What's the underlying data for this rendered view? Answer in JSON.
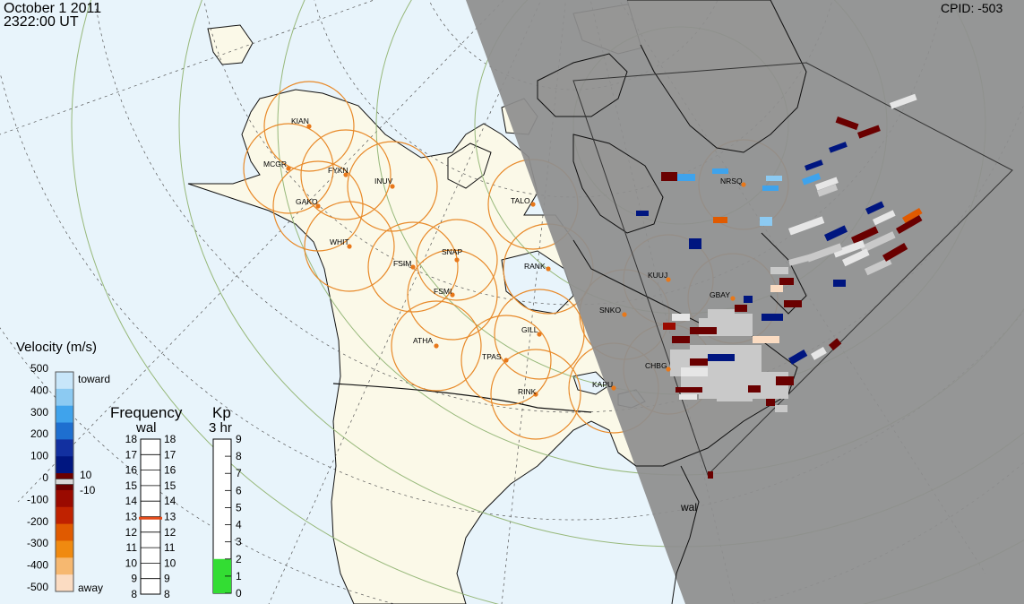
{
  "header": {
    "date": "October  1 2011",
    "time": "2322:00 UT",
    "cpid": "CPID:  -503"
  },
  "stations": [
    {
      "code": "KIAN"
    },
    {
      "code": "MCGR"
    },
    {
      "code": "FYKN"
    },
    {
      "code": "INUV"
    },
    {
      "code": "GAKO"
    },
    {
      "code": "WHIT"
    },
    {
      "code": "FSIM"
    },
    {
      "code": "SNAP"
    },
    {
      "code": "FSMI"
    },
    {
      "code": "TALO"
    },
    {
      "code": "RANK"
    },
    {
      "code": "NRSQ"
    },
    {
      "code": "KUUJ"
    },
    {
      "code": "GBAY"
    },
    {
      "code": "SNKO"
    },
    {
      "code": "GILL"
    },
    {
      "code": "ATHA"
    },
    {
      "code": "TPAS"
    },
    {
      "code": "CHBG"
    },
    {
      "code": "KAPU"
    },
    {
      "code": "RINK"
    }
  ],
  "radar_label": "wal",
  "velocity_scale": {
    "title": "Velocity (m/s)",
    "ticks": [
      "500",
      "400",
      "300",
      "200",
      "100",
      "0",
      "-100",
      "-200",
      "-300",
      "-400",
      "-500"
    ],
    "toward_label": "toward",
    "away_label": "away",
    "plus_label": "10",
    "minus_label": "-10",
    "colors": [
      "#c8e6fa",
      "#8ccaf2",
      "#3fa3ec",
      "#1e6fd0",
      "#1230a0",
      "#001680",
      "#6a0000",
      "#9a0a00",
      "#c02200",
      "#e05a00",
      "#f08a10",
      "#f6b870",
      "#fbdcc2"
    ]
  },
  "frequency_scale": {
    "title": "Frequency",
    "subtitle": "wal",
    "ticks": [
      "18",
      "17",
      "16",
      "15",
      "14",
      "13",
      "12",
      "11",
      "10",
      "9",
      "8"
    ],
    "value_mhz": 12.9,
    "marker_color": "#e34a1a"
  },
  "kp_scale": {
    "title": "Kp",
    "subtitle": "3 hr",
    "ticks": [
      "9",
      "8",
      "7",
      "6",
      "5",
      "4",
      "3",
      "2",
      "1",
      "0"
    ],
    "value": 2,
    "fill_color": "#33dd33"
  },
  "colors": {
    "ocean": "#e8f4fb",
    "land": "#fbf9e8",
    "night": "#8e8e8e",
    "ring": "#e88a2a",
    "station_dot": "#e8781a"
  }
}
